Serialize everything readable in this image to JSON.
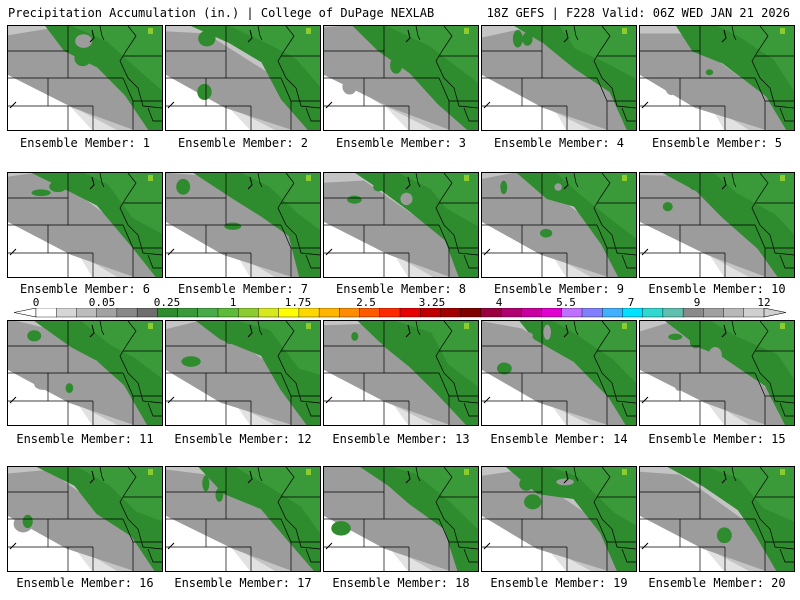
{
  "header": {
    "left": "Precipitation Accumulation (in.) | College of DuPage NEXLAB",
    "right": "18Z GEFS | F228 Valid: 06Z WED JAN 21 2026"
  },
  "panels": [
    {
      "label": "Ensemble Member: 1"
    },
    {
      "label": "Ensemble Member: 2"
    },
    {
      "label": "Ensemble Member: 3"
    },
    {
      "label": "Ensemble Member: 4"
    },
    {
      "label": "Ensemble Member: 5"
    },
    {
      "label": "Ensemble Member: 6"
    },
    {
      "label": "Ensemble Member: 7"
    },
    {
      "label": "Ensemble Member: 8"
    },
    {
      "label": "Ensemble Member: 9"
    },
    {
      "label": "Ensemble Member: 10"
    },
    {
      "label": "Ensemble Member: 11"
    },
    {
      "label": "Ensemble Member: 12"
    },
    {
      "label": "Ensemble Member: 13"
    },
    {
      "label": "Ensemble Member: 14"
    },
    {
      "label": "Ensemble Member: 15"
    },
    {
      "label": "Ensemble Member: 16"
    },
    {
      "label": "Ensemble Member: 17"
    },
    {
      "label": "Ensemble Member: 18"
    },
    {
      "label": "Ensemble Member: 19"
    },
    {
      "label": "Ensemble Member: 20"
    }
  ],
  "colorbar": {
    "labels": [
      "0",
      "0.05",
      "0.25",
      "1",
      "1.75",
      "2.5",
      "3.25",
      "4",
      "5.5",
      "7",
      "9",
      "12"
    ],
    "colors": [
      "#ffffff",
      "#d6d6d6",
      "#bcbcbc",
      "#a2a2a2",
      "#888888",
      "#6e6e6e",
      "#2e8b2e",
      "#3a9a3a",
      "#48aa48",
      "#5cbc3a",
      "#8ccc2e",
      "#d8e81e",
      "#ffff00",
      "#ffd700",
      "#ffb400",
      "#ff8c00",
      "#ff5a00",
      "#ff2a00",
      "#e60000",
      "#c00000",
      "#a00000",
      "#800000",
      "#9a0040",
      "#b00070",
      "#c800a0",
      "#e000d0",
      "#c070ff",
      "#8080ff",
      "#40b0ff",
      "#00e0ff",
      "#30d8d0",
      "#60c0b0",
      "#8a8a8a",
      "#a0a0a0",
      "#b8b8b8",
      "#d0d0d0"
    ],
    "accent_green": "#2e8b2e"
  }
}
